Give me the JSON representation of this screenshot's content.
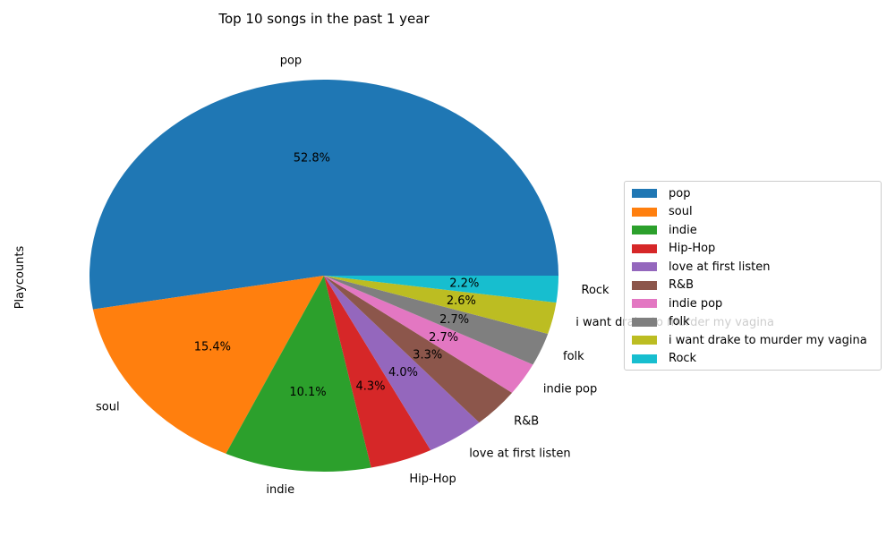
{
  "chart_data": {
    "type": "pie",
    "title": "Top 10 songs in the past 1 year",
    "ylabel": "Playcounts",
    "xlabel": "",
    "legend_position": "right",
    "categories": [
      "pop",
      "soul",
      "indie",
      "Hip-Hop",
      "love at first listen",
      "R&B",
      "indie pop",
      "folk",
      "i want drake to murder my vagina",
      "Rock"
    ],
    "values": [
      52.8,
      15.4,
      10.1,
      4.3,
      4.0,
      3.3,
      2.7,
      2.7,
      2.6,
      2.2
    ],
    "value_labels": [
      "52.8%",
      "15.4%",
      "10.1%",
      "4.3%",
      "4.0%",
      "3.3%",
      "2.7%",
      "2.7%",
      "2.6%",
      "2.2%"
    ],
    "colors": [
      "#1f77b4",
      "#ff7f0e",
      "#2ca02c",
      "#d62728",
      "#9467bd",
      "#8c564b",
      "#e377c2",
      "#7f7f7f",
      "#bcbd22",
      "#17becf"
    ],
    "start_angle_deg": 0,
    "direction": "counterclockwise"
  }
}
